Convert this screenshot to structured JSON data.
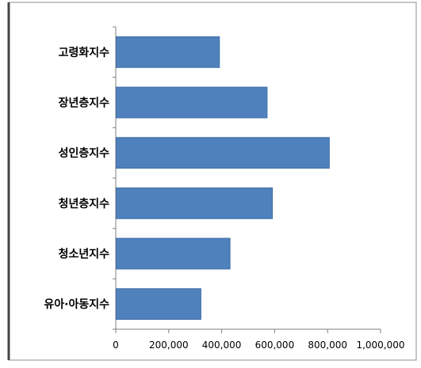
{
  "chart_data": {
    "type": "bar",
    "orientation": "horizontal",
    "title": "",
    "xlabel": "",
    "ylabel": "",
    "categories": [
      "고령화지수",
      "장년층지수",
      "성인층지수",
      "청년층지수",
      "청소년지수",
      "유아·아동지수"
    ],
    "values": [
      390000,
      570000,
      805000,
      590000,
      430000,
      320000
    ],
    "xlim": [
      0,
      1000000
    ],
    "xticks": [
      "0",
      "200,000",
      "400,000",
      "600,000",
      "800,000",
      "1,000,000"
    ],
    "xtick_values": [
      0,
      200000,
      400000,
      600000,
      800000,
      1000000
    ],
    "grid": false,
    "legend": "none",
    "colors": {
      "bar": "#4f81bd",
      "bar_border": "#3f6fa6",
      "axis": "#7f7f7f",
      "frame": "#8c8c8c",
      "text": "#000000"
    }
  }
}
